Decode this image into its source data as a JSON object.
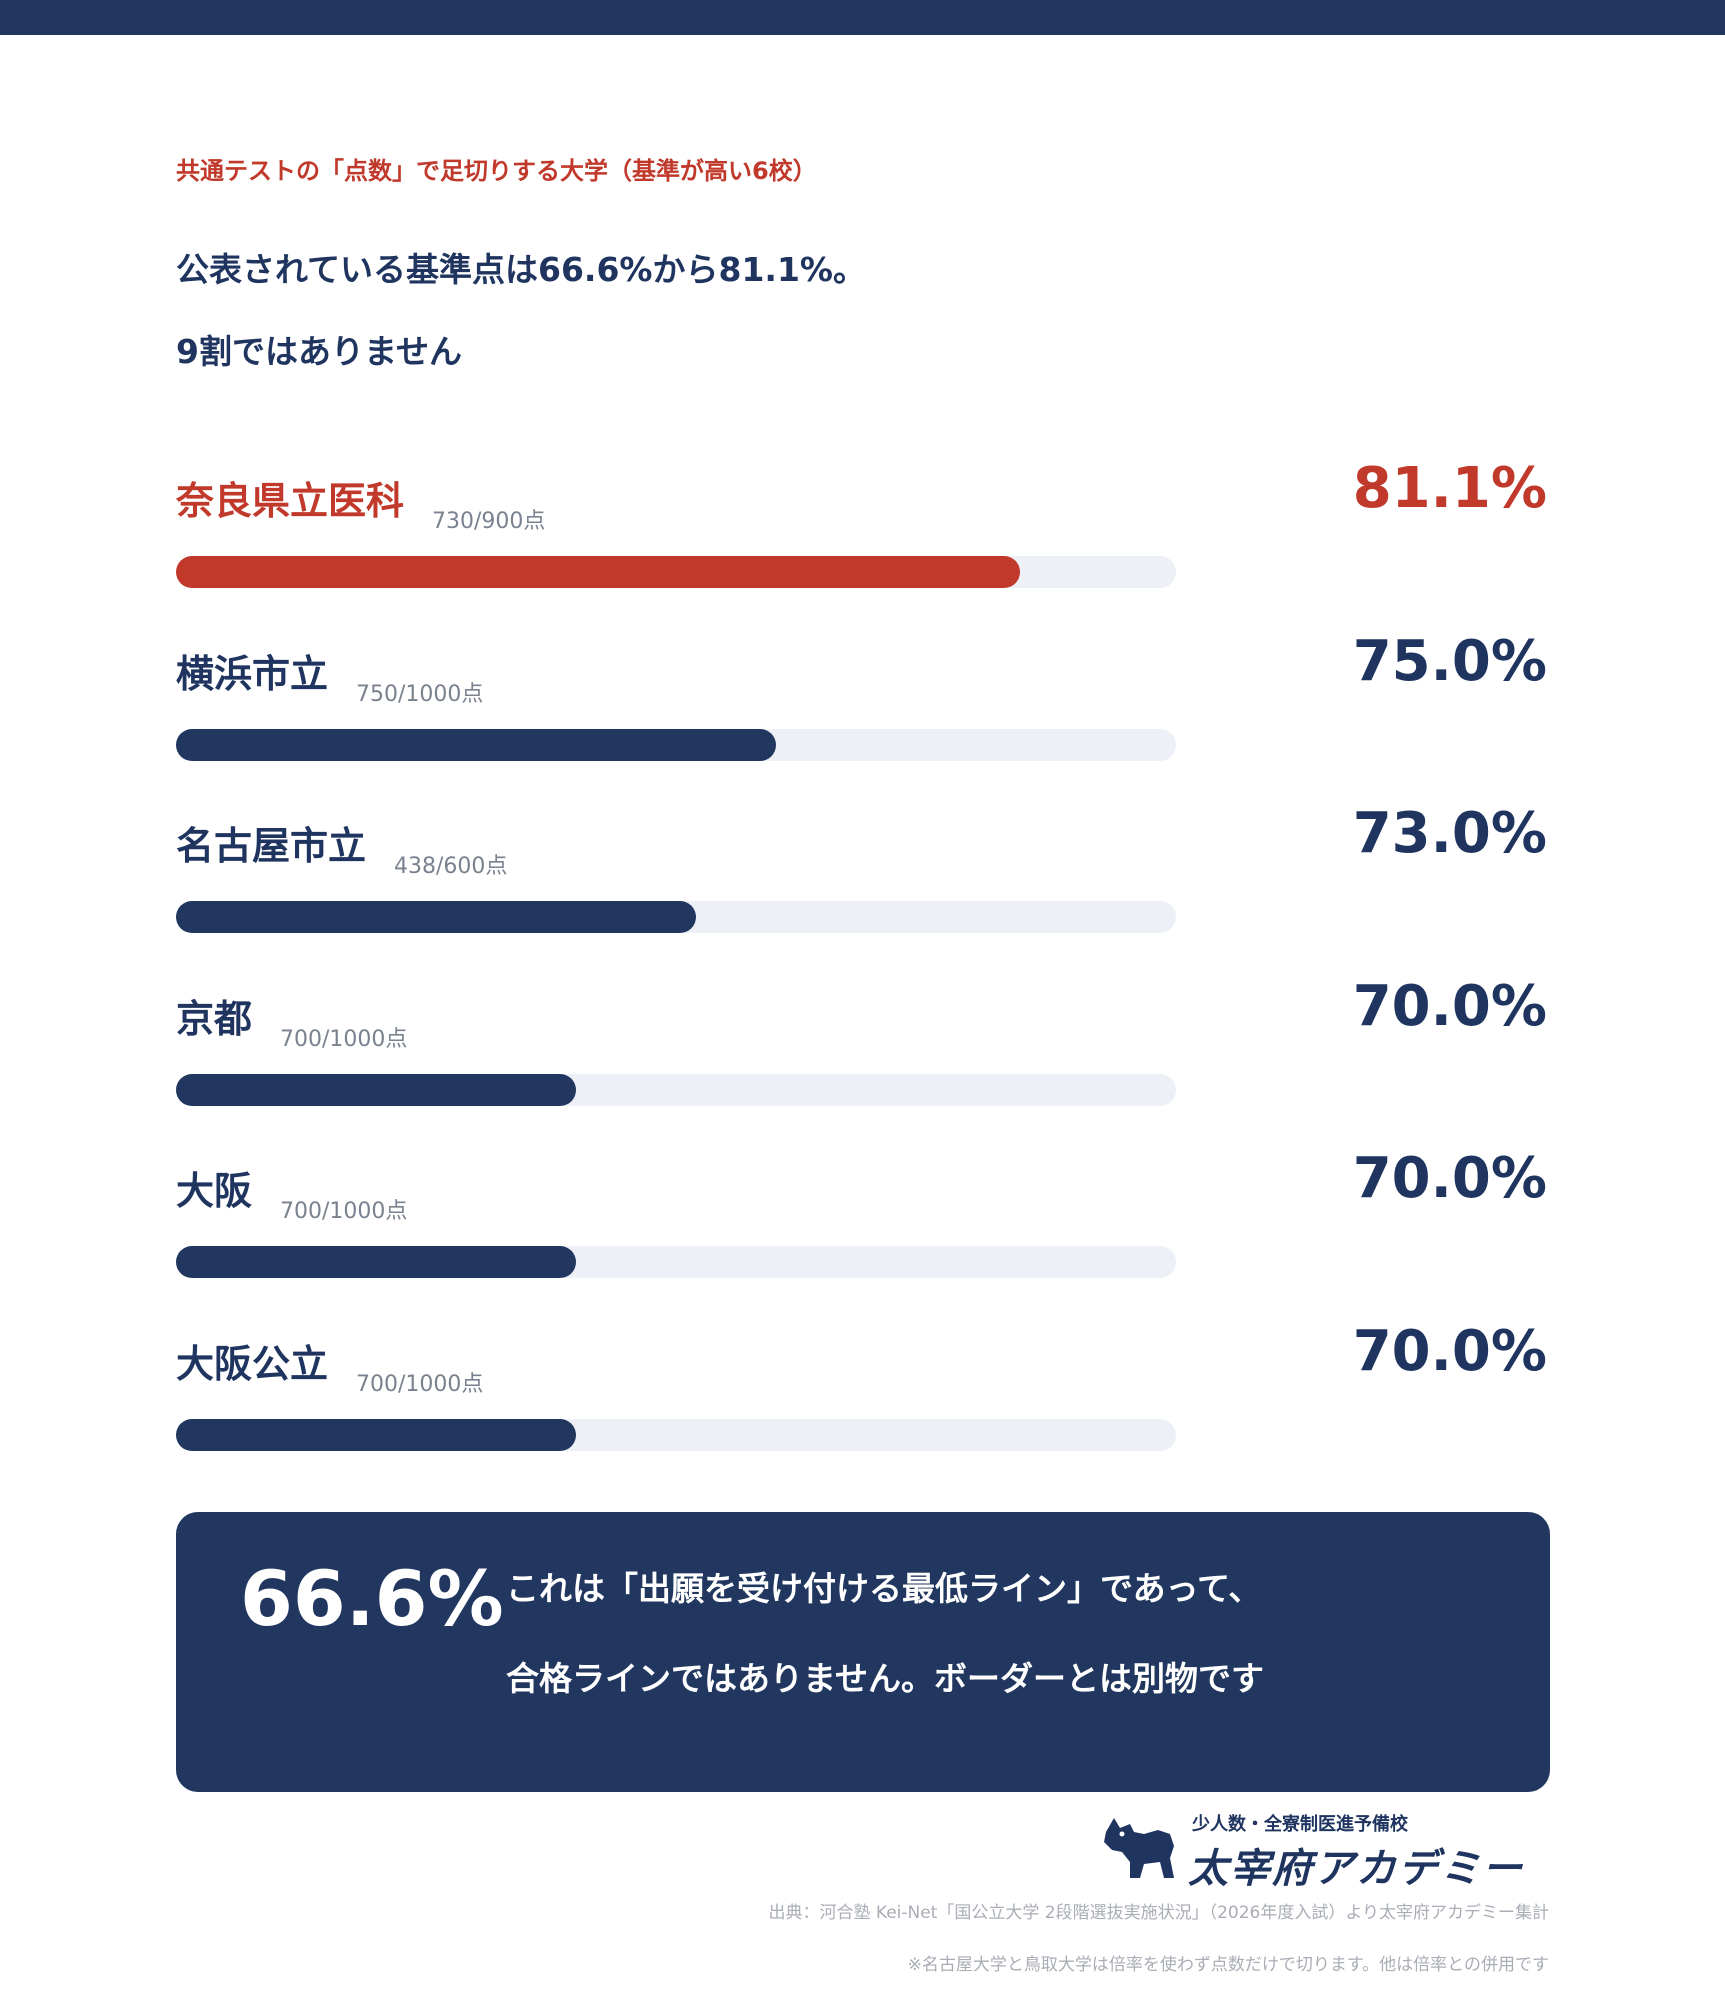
{
  "header": {
    "kicker": "共通テストの「点数」で足切りする大学（基準が高い6校）",
    "lead_line1": "公表されている基準点は66.6%から81.1%。",
    "lead_line2": "9割ではありません"
  },
  "chart_data": {
    "type": "bar",
    "orientation": "horizontal",
    "ylim": [
      0,
      100
    ],
    "series": [
      {
        "values": [
          81.1,
          75.0,
          73.0,
          70.0,
          70.0,
          70.0
        ]
      }
    ],
    "categories": [
      "奈良県立医科",
      "横浜市立",
      "名古屋市立",
      "京都",
      "大阪",
      "大阪公立"
    ],
    "score_labels": [
      "730/900点",
      "750/1000点",
      "438/600点",
      "700/1000点",
      "700/1000点",
      "700/1000点"
    ],
    "value_labels": [
      "81.1%",
      "75.0%",
      "73.0%",
      "70.0%",
      "70.0%",
      "70.0%"
    ],
    "highlight_index": 0,
    "colors": {
      "highlight": "#c0392b",
      "bar": "#21375f",
      "track": "#edf0f7"
    }
  },
  "callout": {
    "value": "66.6%",
    "line1": "これは「出願を受け付ける最低ライン」であって、",
    "line2": "合格ラインではありません。ボーダーとは別物です"
  },
  "brand": {
    "tagline": "少人数・全寮制医進予備校",
    "name": "太宰府アカデミー",
    "icon": "dog-logo-icon"
  },
  "footer": {
    "source": "出典：河合塾 Kei-Net「国公立大学 2段階選抜実施状況」（2026年度入試）より太宰府アカデミー集計",
    "note": "※名古屋大学と鳥取大学は倍率を使わず点数だけで切ります。他は倍率との併用です"
  }
}
